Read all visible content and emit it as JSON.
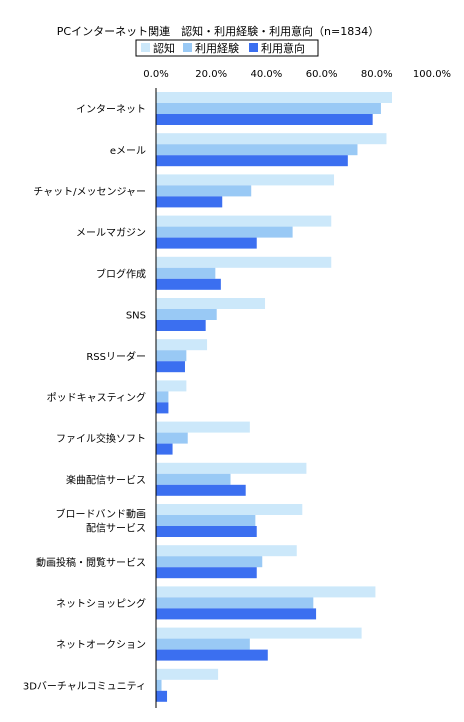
{
  "chart_data": {
    "type": "bar",
    "orientation": "horizontal",
    "title": "PCインターネット関連　認知・利用経験・利用意向（n=1834）",
    "categories": [
      "インターネット",
      "eメール",
      "チャット/メッセンジャー",
      "メールマガジン",
      "ブログ作成",
      "SNS",
      "RSSリーダー",
      "ポッドキャスティング",
      "ファイル交換ソフト",
      "楽曲配信サービス",
      "ブロードバンド動画\n配信サービス",
      "動画投稿・閲覧サービス",
      "ネットショッピング",
      "ネットオークション",
      "3Dバーチャルコミュニティ"
    ],
    "series": [
      {
        "name": "認知",
        "color": "#cce8fa",
        "values": [
          85.5,
          83.5,
          64.5,
          63.5,
          63.5,
          39.5,
          18.5,
          11,
          34,
          54.5,
          53,
          51,
          79.5,
          74.5,
          22.5
        ]
      },
      {
        "name": "利用経験",
        "color": "#99c9f5",
        "values": [
          81.5,
          73,
          34.5,
          49.5,
          21.5,
          22,
          11,
          4.5,
          11.5,
          27,
          36,
          38.5,
          57,
          34,
          2
        ]
      },
      {
        "name": "利用意向",
        "color": "#3b6ff0",
        "values": [
          78.5,
          69.5,
          24,
          36.5,
          23.5,
          18,
          10.5,
          4.5,
          6,
          32.5,
          36.5,
          36.5,
          58,
          40.5,
          4
        ]
      }
    ],
    "xlim": [
      0,
      100
    ],
    "xticks": [
      "0.0%",
      "20.0%",
      "40.0%",
      "60.0%",
      "80.0%",
      "100.0%"
    ],
    "legend_position": "top",
    "grid": false
  }
}
